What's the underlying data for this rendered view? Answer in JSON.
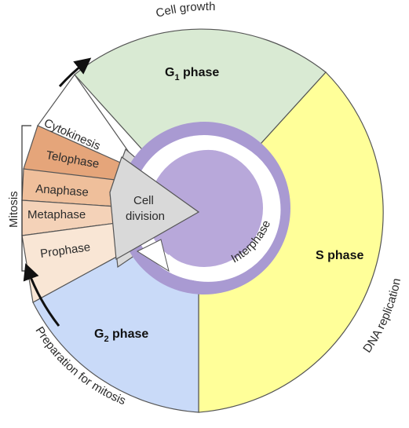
{
  "phases": {
    "g1": {
      "label": "G",
      "sub": "1",
      "suffix": " phase",
      "color": "#d9ead3"
    },
    "s": {
      "label": "S phase",
      "color": "#ffff99"
    },
    "g2": {
      "label": "G",
      "sub": "2",
      "suffix": " phase",
      "color": "#c9daf8"
    }
  },
  "mitosis": {
    "label": "Mitosis",
    "stages": [
      {
        "key": "cytokinesis",
        "label": "Cytokinesis",
        "color": "#ffffff"
      },
      {
        "key": "telophase",
        "label": "Telophase",
        "color": "#e5a57a"
      },
      {
        "key": "anaphase",
        "label": "Anaphase",
        "color": "#efbf9b"
      },
      {
        "key": "metaphase",
        "label": "Metaphase",
        "color": "#f4d2b8"
      },
      {
        "key": "prophase",
        "label": "Prophase",
        "color": "#f9e6d5"
      }
    ]
  },
  "cell_division": {
    "line1": "Cell",
    "line2": "division",
    "color": "#d9d9d9"
  },
  "interphase": {
    "label": "Interphase",
    "ring_color": "#a99ad2",
    "core_color": "#b8a8da"
  },
  "outer_labels": {
    "top": "Cell growth",
    "right": "DNA replication",
    "bottom_left": "Preparation for mitosis"
  }
}
